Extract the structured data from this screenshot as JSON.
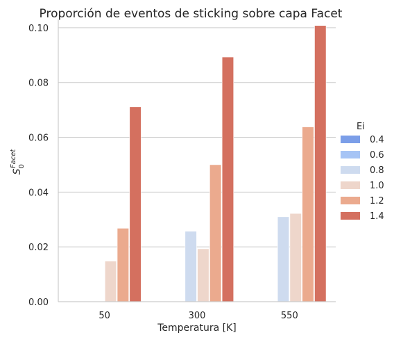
{
  "chart_data": {
    "type": "bar",
    "title": "Proporción de eventos de sticking sobre capa Facet",
    "xlabel": "Temperatura [K]",
    "ylabel_main": "S",
    "ylabel_sub": "0",
    "ylabel_sup": "Facet",
    "categories": [
      "50",
      "300",
      "550"
    ],
    "ylim": [
      0,
      0.102
    ],
    "yticks": [
      0.0,
      0.02,
      0.04,
      0.06,
      0.08,
      0.1
    ],
    "ytick_labels": [
      "0.00",
      "0.02",
      "0.04",
      "0.06",
      "0.08",
      "0.10"
    ],
    "grid": "horizontal",
    "legend_title": "Ei",
    "legend_position": "right",
    "series": [
      {
        "name": "0.4",
        "color": "#7b9ee8",
        "values": [
          0,
          0,
          0
        ]
      },
      {
        "name": "0.6",
        "color": "#a6c4f5",
        "values": [
          0,
          0,
          0
        ]
      },
      {
        "name": "0.8",
        "color": "#cedbef",
        "values": [
          0,
          0.0257,
          0.031
        ]
      },
      {
        "name": "1.0",
        "color": "#eed6cb",
        "values": [
          0.0148,
          0.0193,
          0.0322
        ]
      },
      {
        "name": "1.2",
        "color": "#ebaa8e",
        "values": [
          0.0268,
          0.05,
          0.0638
        ]
      },
      {
        "name": "1.4",
        "color": "#d4705f",
        "values": [
          0.0711,
          0.0893,
          0.1008
        ]
      }
    ]
  }
}
